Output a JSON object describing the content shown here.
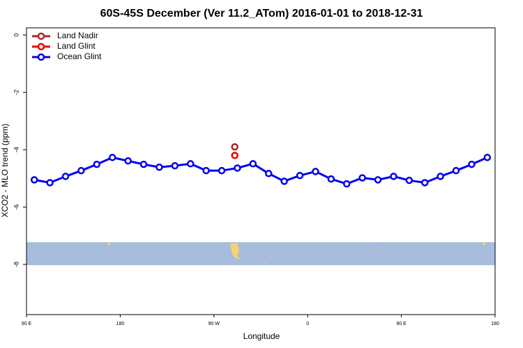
{
  "chart_data": {
    "type": "line",
    "title": "60S-45S December (Ver 11.2_ATom)   2016-01-01 to 2018-12-31",
    "x_label": "Longitude",
    "y_label": "XCO2 - MLO trend (ppm)",
    "xlim": [
      90,
      540
    ],
    "ylim": [
      -9.75,
      0.25
    ],
    "xticks": [
      {
        "value": 90,
        "label": "90 E"
      },
      {
        "value": 180,
        "label": "180"
      },
      {
        "value": 270,
        "label": "90 W"
      },
      {
        "value": 360,
        "label": "0"
      },
      {
        "value": 450,
        "label": "90 E"
      },
      {
        "value": 540,
        "label": "180"
      }
    ],
    "yticks": [
      0,
      -2,
      -4,
      -6,
      -8
    ],
    "legend": "top-left",
    "series": [
      {
        "name": "Land Nadir",
        "color": "#a52a2a",
        "x": [
          290
        ],
        "values": [
          -3.9
        ]
      },
      {
        "name": "Land Glint",
        "color": "#ee0000",
        "x": [
          290
        ],
        "values": [
          -4.2
        ]
      },
      {
        "name": "Ocean Glint",
        "color": "#0000ee",
        "x": [
          97.5,
          112.5,
          127.5,
          142.5,
          157.5,
          172.5,
          187.5,
          202.5,
          217.5,
          232.5,
          247.5,
          262.5,
          277.5,
          292.5,
          307.5,
          322.5,
          337.5,
          352.5,
          367.5,
          382.5,
          397.5,
          412.5,
          427.5,
          442.5,
          457.5,
          472.5,
          487.5,
          502.5,
          517.5,
          532.5
        ],
        "values": [
          -5.05,
          -5.15,
          -4.93,
          -4.73,
          -4.51,
          -4.27,
          -4.39,
          -4.51,
          -4.61,
          -4.56,
          -4.49,
          -4.73,
          -4.73,
          -4.64,
          -4.49,
          -4.83,
          -5.1,
          -4.9,
          -4.76,
          -5.02,
          -5.19,
          -4.98,
          -5.05,
          -4.93,
          -5.07,
          -5.15,
          -4.93,
          -4.73,
          -4.51,
          -4.27
        ]
      }
    ]
  }
}
